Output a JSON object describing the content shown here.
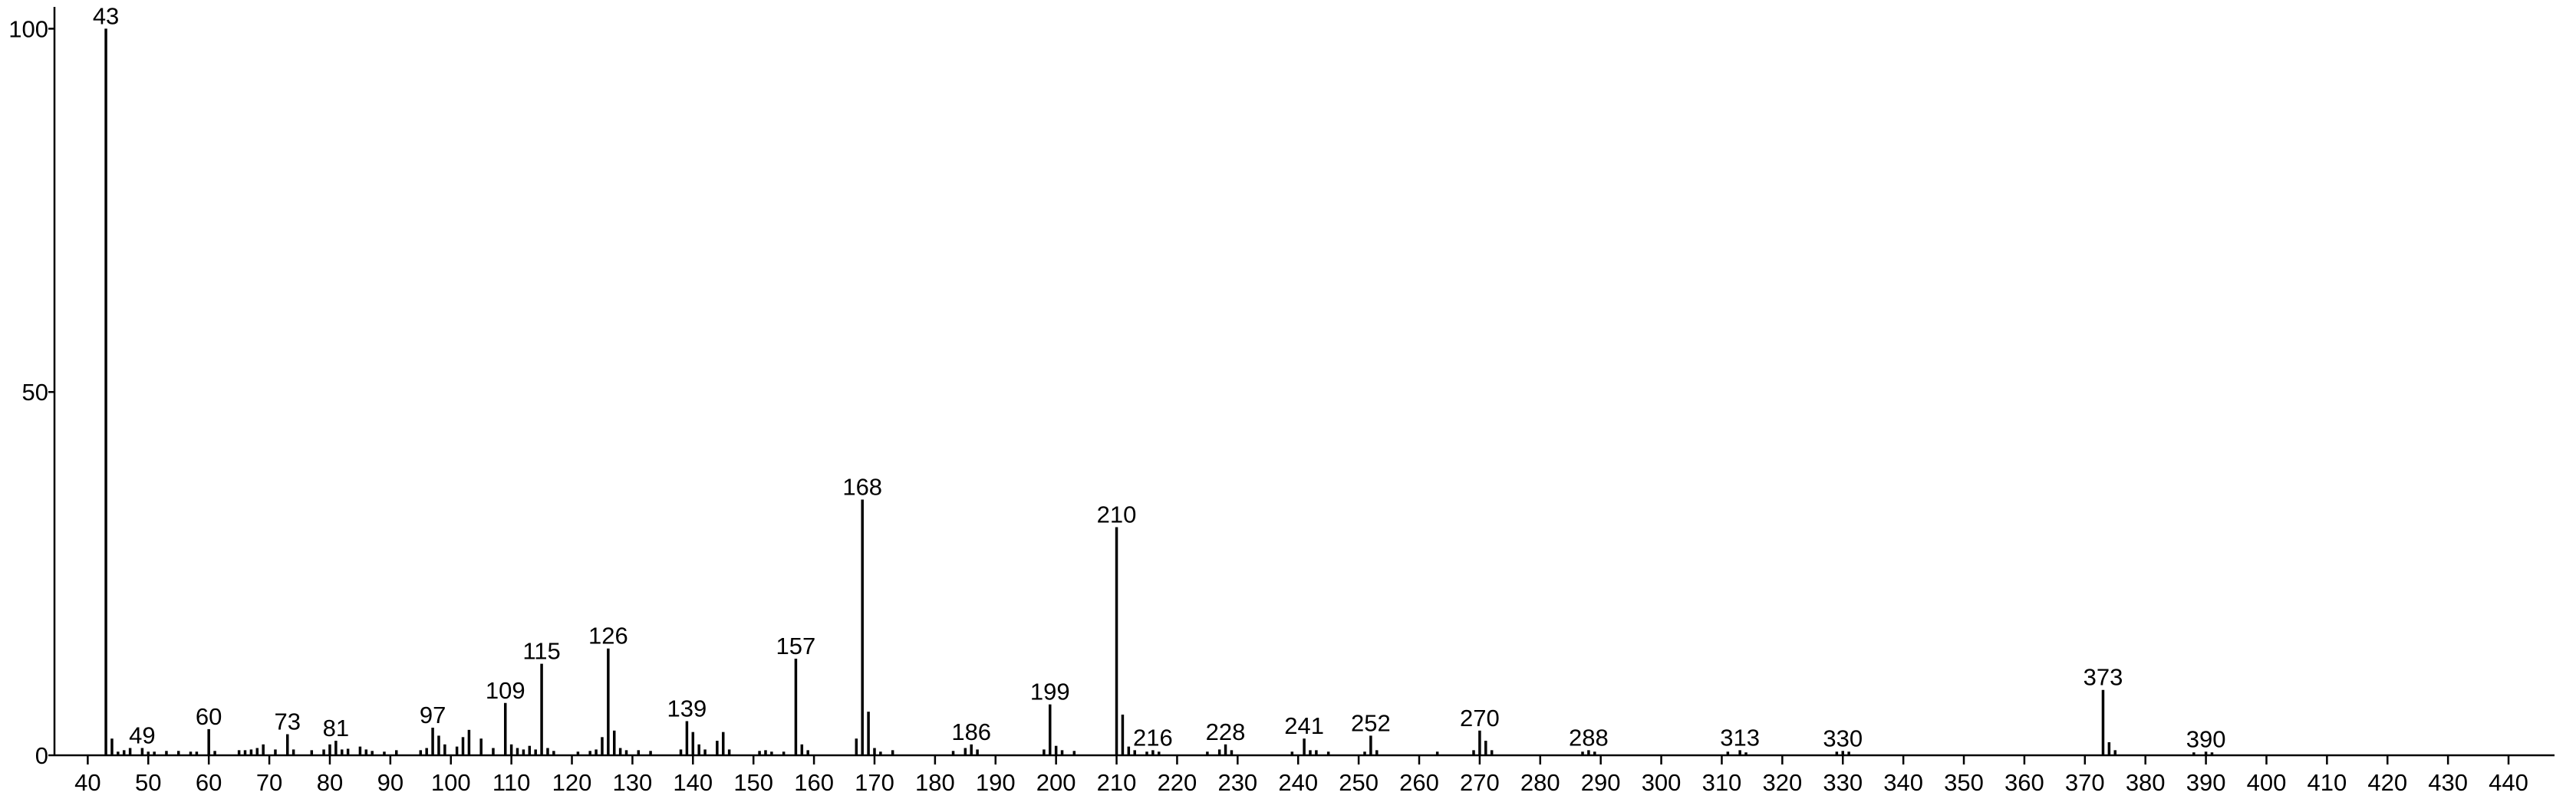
{
  "chart_data": {
    "type": "stick",
    "x": [
      43,
      44,
      45,
      46,
      47,
      49,
      50,
      51,
      53,
      55,
      57,
      58,
      60,
      61,
      65,
      66,
      67,
      68,
      69,
      71,
      73,
      74,
      77,
      79,
      80,
      81,
      82,
      83,
      85,
      86,
      87,
      89,
      91,
      95,
      96,
      97,
      98,
      99,
      101,
      102,
      103,
      105,
      107,
      109,
      110,
      111,
      112,
      113,
      114,
      115,
      116,
      117,
      121,
      123,
      124,
      125,
      126,
      127,
      128,
      129,
      131,
      133,
      138,
      139,
      140,
      141,
      142,
      144,
      145,
      146,
      151,
      152,
      153,
      155,
      157,
      158,
      159,
      167,
      168,
      169,
      170,
      171,
      173,
      183,
      185,
      186,
      187,
      198,
      199,
      200,
      201,
      203,
      210,
      211,
      212,
      213,
      215,
      216,
      217,
      225,
      227,
      228,
      229,
      239,
      241,
      242,
      243,
      245,
      251,
      252,
      253,
      263,
      269,
      270,
      271,
      272,
      287,
      288,
      289,
      311,
      313,
      314,
      329,
      330,
      331,
      373,
      374,
      375,
      388,
      390,
      391
    ],
    "values": [
      100,
      2.3,
      0.5,
      0.7,
      1,
      1,
      0.5,
      0.5,
      0.6,
      0.6,
      0.5,
      0.5,
      3.6,
      0.6,
      0.7,
      0.7,
      0.8,
      1,
      1.5,
      0.8,
      2.9,
      0.8,
      0.7,
      0.8,
      1.5,
      2,
      0.8,
      0.9,
      1.2,
      0.8,
      0.6,
      0.5,
      0.7,
      0.7,
      1,
      3.8,
      2.7,
      1.5,
      1.2,
      2.5,
      3.5,
      2.3,
      1,
      7.2,
      1.5,
      1,
      0.8,
      1.3,
      0.8,
      12.6,
      1,
      0.6,
      0.5,
      0.6,
      0.8,
      2.5,
      14.7,
      3.4,
      1,
      0.7,
      0.7,
      0.6,
      0.8,
      4.7,
      3.2,
      1.5,
      0.8,
      2,
      3.2,
      0.8,
      0.6,
      0.7,
      0.5,
      0.5,
      13.3,
      1.5,
      0.7,
      2.3,
      35.2,
      6,
      1,
      0.5,
      0.7,
      0.6,
      1,
      1.5,
      0.8,
      0.8,
      7,
      1.3,
      0.7,
      0.6,
      31.4,
      5.6,
      1.2,
      0.7,
      0.5,
      0.7,
      0.5,
      0.5,
      0.8,
      1.5,
      0.7,
      0.5,
      2.3,
      0.7,
      0.7,
      0.5,
      0.5,
      2.7,
      0.7,
      0.5,
      0.7,
      3.4,
      2,
      0.7,
      0.5,
      0.7,
      0.5,
      0.5,
      0.7,
      0.4,
      0.5,
      0.6,
      0.5,
      9,
      1.8,
      0.7,
      0.4,
      0.5,
      0.4
    ],
    "labels": [
      "43",
      null,
      null,
      null,
      null,
      "49",
      null,
      null,
      null,
      null,
      null,
      null,
      "60",
      null,
      null,
      null,
      null,
      null,
      null,
      null,
      "73",
      null,
      null,
      null,
      null,
      "81",
      null,
      null,
      null,
      null,
      null,
      null,
      null,
      null,
      null,
      "97",
      null,
      null,
      null,
      null,
      null,
      null,
      null,
      "109",
      null,
      null,
      null,
      null,
      null,
      "115",
      null,
      null,
      null,
      null,
      null,
      null,
      "126",
      null,
      null,
      null,
      null,
      null,
      null,
      "139",
      null,
      null,
      null,
      null,
      null,
      null,
      null,
      null,
      null,
      null,
      "157",
      null,
      null,
      null,
      "168",
      null,
      null,
      null,
      null,
      null,
      null,
      "186",
      null,
      null,
      "199",
      null,
      null,
      null,
      "210",
      null,
      null,
      null,
      null,
      "216",
      null,
      null,
      null,
      "228",
      null,
      null,
      "241",
      null,
      null,
      null,
      null,
      "252",
      null,
      null,
      null,
      "270",
      null,
      null,
      null,
      "288",
      null,
      null,
      "313",
      null,
      null,
      "330",
      null,
      "373",
      null,
      null,
      null,
      "390",
      null
    ],
    "color": "#000000",
    "xlim": [
      34.5,
      447.6
    ],
    "xticks": [
      40,
      50,
      60,
      70,
      80,
      90,
      100,
      110,
      120,
      130,
      140,
      150,
      160,
      170,
      180,
      190,
      200,
      210,
      220,
      230,
      240,
      250,
      260,
      270,
      280,
      290,
      300,
      310,
      320,
      330,
      340,
      350,
      360,
      370,
      380,
      390,
      400,
      410,
      420,
      430,
      440
    ],
    "ylim": [
      0,
      103
    ],
    "yticks": [
      0,
      50,
      100
    ]
  }
}
